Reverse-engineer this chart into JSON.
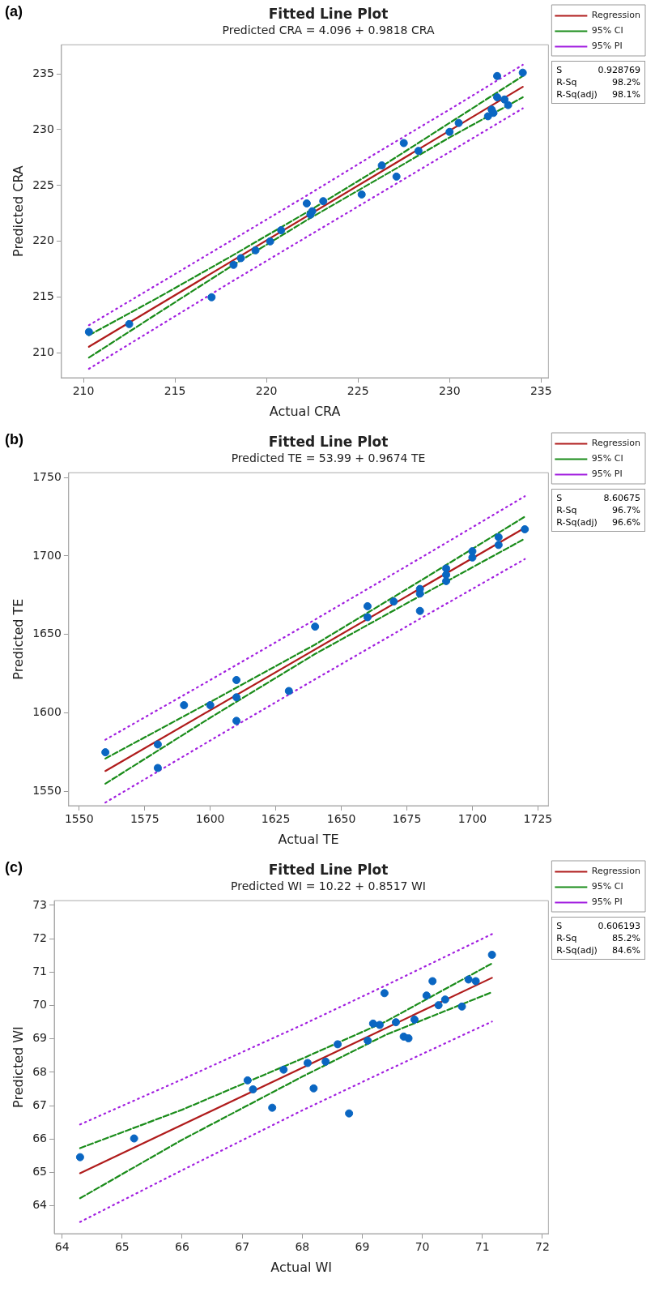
{
  "chart_data": [
    {
      "type": "scatter",
      "title": "Fitted Line Plot",
      "subtitle": "Predicted CRA = 4.096 + 0.9818 CRA",
      "xlabel": "Actual CRA",
      "ylabel": "Predicted CRA",
      "annotations": [
        "(a)",
        "S",
        "0.928769",
        "R-Sq",
        "98.2%",
        "R-Sq(adj)",
        "98.1%"
      ],
      "xlim": [
        208.8,
        235.4
      ],
      "xticks": [
        210,
        215,
        220,
        225,
        230,
        235
      ],
      "ylim": [
        207.8,
        237.6
      ],
      "yticks": [
        210,
        215,
        220,
        225,
        230,
        235
      ],
      "grid": false,
      "legend": "right",
      "series": [
        {
          "name": "Regression",
          "type": "line",
          "color": "#b01c1c",
          "line_style": "solid",
          "x": [
            210.3,
            234
          ],
          "values": [
            210.57,
            233.83
          ]
        },
        {
          "name": "95% CI",
          "type": "line",
          "color": "#1a8c1a",
          "line_style": "dashed",
          "x": [
            210.3,
            214,
            218,
            222.3,
            226,
            230,
            234
          ],
          "values": [
            211.6,
            214.9,
            218.6,
            222.7,
            226.4,
            230.6,
            234.8
          ]
        },
        {
          "type": "line",
          "color": "#1a8c1a",
          "line_style": "dashed",
          "x": [
            210.3,
            214,
            218,
            222.3,
            226,
            230,
            234
          ],
          "values": [
            209.6,
            213.5,
            217.7,
            222.0,
            225.5,
            229.3,
            232.9
          ]
        },
        {
          "name": "95% PI",
          "type": "line",
          "color": "#a21fe0",
          "line_style": "dotted",
          "x": [
            210.3,
            214,
            218,
            222.3,
            226,
            230,
            234
          ],
          "values": [
            212.5,
            216.1,
            220.0,
            224.2,
            227.9,
            231.8,
            235.8
          ]
        },
        {
          "type": "line",
          "color": "#a21fe0",
          "line_style": "dotted",
          "x": [
            210.3,
            214,
            218,
            222.3,
            226,
            230,
            234
          ],
          "values": [
            208.6,
            212.3,
            216.3,
            220.5,
            224.1,
            228.0,
            231.9
          ]
        },
        {
          "marker": "circle",
          "color": "#0a66c2",
          "x": [
            210.3,
            212.5,
            217.0,
            218.2,
            218.6,
            219.4,
            220.2,
            220.8,
            222.2,
            222.4,
            222.5,
            223.1,
            225.2,
            226.3,
            227.1,
            227.5,
            228.3,
            230.0,
            230.5,
            232.1,
            232.3,
            232.4,
            232.6,
            232.6,
            233.0,
            233.2,
            234.0
          ],
          "values": [
            211.9,
            212.6,
            215.0,
            217.9,
            218.5,
            219.2,
            220.0,
            221.0,
            223.4,
            222.4,
            222.7,
            223.6,
            224.2,
            226.8,
            225.8,
            228.8,
            228.1,
            229.8,
            230.6,
            231.2,
            231.8,
            231.5,
            234.8,
            232.9,
            232.7,
            232.2,
            235.1
          ]
        }
      ]
    },
    {
      "type": "scatter",
      "title": "Fitted Line Plot",
      "subtitle": "Predicted TE = 53.99 + 0.9674 TE",
      "xlabel": "Actual TE",
      "ylabel": "Predicted TE",
      "annotations": [
        "(b)",
        "S",
        "8.60675",
        "R-Sq",
        "96.7%",
        "R-Sq(adj)",
        "96.6%"
      ],
      "xlim": [
        1546,
        1729
      ],
      "xticks": [
        1550,
        1575,
        1600,
        1625,
        1650,
        1675,
        1700,
        1725
      ],
      "ylim": [
        1541,
        1753
      ],
      "yticks": [
        1550,
        1600,
        1650,
        1700,
        1750
      ],
      "grid": false,
      "legend": "right",
      "series": [
        {
          "name": "Regression",
          "type": "line",
          "color": "#b01c1c",
          "line_style": "solid",
          "x": [
            1560,
            1720
          ],
          "values": [
            1563.1,
            1717.9
          ]
        },
        {
          "name": "95% CI",
          "type": "line",
          "color": "#1a8c1a",
          "line_style": "dashed",
          "x": [
            1560,
            1600,
            1640,
            1680,
            1720
          ],
          "values": [
            1571,
            1607,
            1643.6,
            1684,
            1725
          ]
        },
        {
          "type": "line",
          "color": "#1a8c1a",
          "line_style": "dashed",
          "x": [
            1560,
            1600,
            1640,
            1680,
            1720
          ],
          "values": [
            1555,
            1597,
            1637.6,
            1674.5,
            1711
          ]
        },
        {
          "name": "95% PI",
          "type": "line",
          "color": "#a21fe0",
          "line_style": "dotted",
          "x": [
            1560,
            1600,
            1640,
            1680,
            1720
          ],
          "values": [
            1583,
            1621,
            1659.5,
            1698.5,
            1738
          ]
        },
        {
          "type": "line",
          "color": "#a21fe0",
          "line_style": "dotted",
          "x": [
            1560,
            1600,
            1640,
            1680,
            1720
          ],
          "values": [
            1543,
            1582.5,
            1621.5,
            1660,
            1698
          ]
        },
        {
          "marker": "circle",
          "color": "#0a66c2",
          "x": [
            1560,
            1580,
            1580,
            1590,
            1600,
            1610,
            1610,
            1610,
            1630,
            1640,
            1660,
            1660,
            1670,
            1680,
            1680,
            1680,
            1690,
            1690,
            1690,
            1700,
            1700,
            1710,
            1710,
            1720
          ],
          "values": [
            1575,
            1580,
            1565,
            1605,
            1605,
            1621,
            1610,
            1595,
            1614,
            1655,
            1668,
            1661,
            1671,
            1679,
            1676,
            1665,
            1692,
            1688,
            1684,
            1703,
            1699,
            1712,
            1707,
            1717
          ]
        }
      ]
    },
    {
      "type": "scatter",
      "title": "Fitted Line Plot",
      "subtitle": "Predicted WI = 10.22 + 0.8517 WI",
      "xlabel": "Actual WI",
      "ylabel": "Predicted WI",
      "annotations": [
        "(c)",
        "S",
        "0.606193",
        "R-Sq",
        "85.2%",
        "R-Sq(adj)",
        "84.6%"
      ],
      "xlim": [
        63.87,
        72.1
      ],
      "xticks": [
        64,
        65,
        66,
        67,
        68,
        69,
        70,
        71,
        72
      ],
      "ylim": [
        63.17,
        73.14
      ],
      "yticks": [
        64,
        65,
        66,
        67,
        68,
        69,
        70,
        71,
        72,
        73
      ],
      "grid": false,
      "legend": "right",
      "series": [
        {
          "name": "Regression",
          "type": "line",
          "color": "#b01c1c",
          "line_style": "solid",
          "x": [
            64.3,
            71.16
          ],
          "values": [
            64.98,
            70.83
          ]
        },
        {
          "name": "95% CI",
          "type": "line",
          "color": "#1a8c1a",
          "line_style": "dashed",
          "x": [
            64.3,
            66,
            68,
            69.4,
            71.16
          ],
          "values": [
            65.73,
            66.88,
            68.41,
            69.53,
            71.26
          ]
        },
        {
          "type": "line",
          "color": "#1a8c1a",
          "line_style": "dashed",
          "x": [
            64.3,
            66,
            68,
            69.4,
            71.16
          ],
          "values": [
            64.23,
            65.98,
            67.87,
            69.13,
            70.4
          ]
        },
        {
          "name": "95% PI",
          "type": "line",
          "color": "#a21fe0",
          "line_style": "dotted",
          "x": [
            64.3,
            66,
            68,
            69.4,
            71.16
          ],
          "values": [
            66.44,
            67.79,
            69.42,
            70.61,
            72.14
          ]
        },
        {
          "type": "line",
          "color": "#a21fe0",
          "line_style": "dotted",
          "x": [
            64.3,
            66,
            68,
            69.4,
            71.16
          ],
          "values": [
            63.52,
            65.07,
            66.86,
            68.05,
            69.52
          ]
        },
        {
          "marker": "circle",
          "color": "#0a66c2",
          "x": [
            64.3,
            65.2,
            67.09,
            67.18,
            67.5,
            67.69,
            68.09,
            68.19,
            68.39,
            68.59,
            68.78,
            69.09,
            69.18,
            69.29,
            69.37,
            69.56,
            69.69,
            69.77,
            69.87,
            70.07,
            70.17,
            70.27,
            70.38,
            70.66,
            70.77,
            70.89,
            71.16
          ],
          "values": [
            65.46,
            66.02,
            67.76,
            67.49,
            66.94,
            68.08,
            68.28,
            67.52,
            68.32,
            68.84,
            66.77,
            68.95,
            69.46,
            69.42,
            70.37,
            69.5,
            69.07,
            69.02,
            69.58,
            70.3,
            70.73,
            70.01,
            70.18,
            69.97,
            70.78,
            70.73,
            71.52
          ]
        }
      ]
    }
  ]
}
